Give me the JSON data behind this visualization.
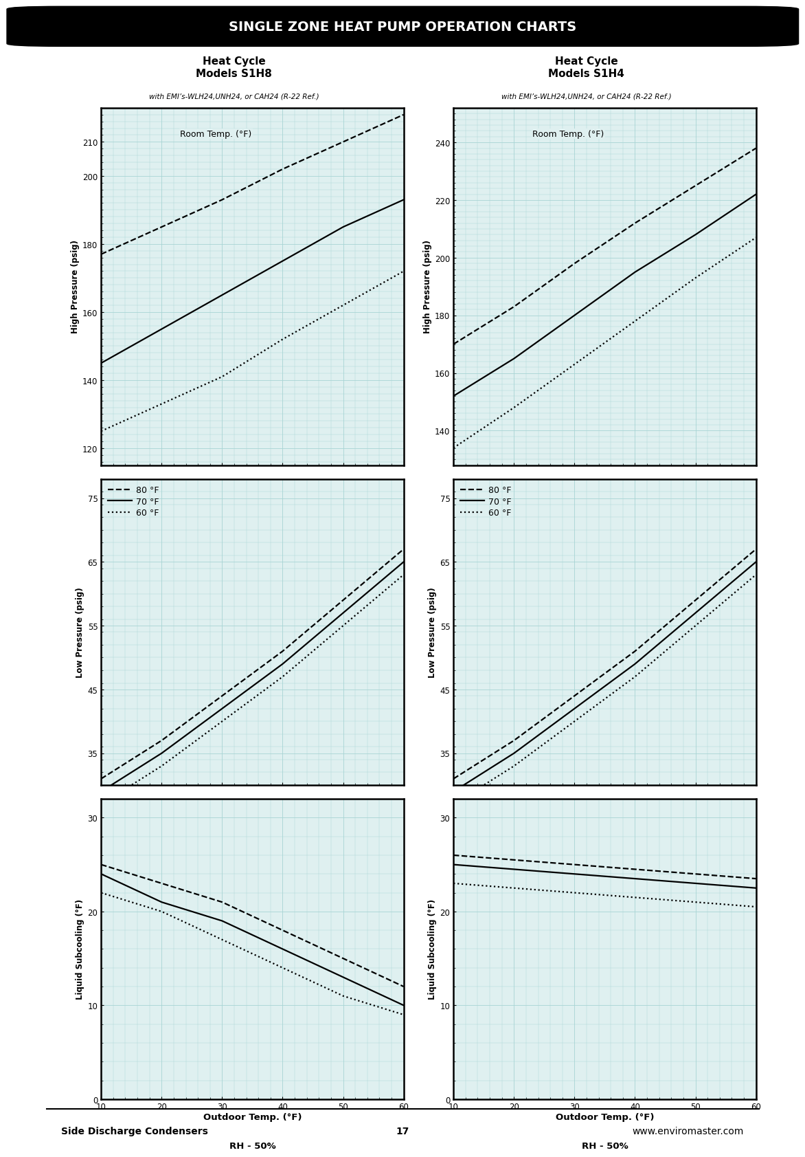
{
  "title": "SINGLE ZONE HEAT PUMP OPERATION CHARTS",
  "footer_left": "Side Discharge Condensers",
  "footer_center": "17",
  "footer_right": "www.enviromaster.com",
  "col1_title": "Heat Cycle\nModels S1H8",
  "col1_subtitle": "with EMI’s-WLH24,UNH24, or CAH24 (R-22 Ref.)",
  "col2_title": "Heat Cycle\nModels S1H4",
  "col2_subtitle": "with EMI’s-WLH24,UNH24, or CAH24 (R-22 Ref.)",
  "x_label_line1": "Outdoor Temp. (°F)",
  "x_label_line2": "RH - 50%",
  "x_ticks": [
    10,
    20,
    30,
    40,
    50,
    60
  ],
  "x_lim": [
    10,
    60
  ],
  "legend_labels": [
    "80 °F",
    "70 °F",
    "60 °F"
  ],
  "room_temp_label": "Room Temp. (°F)",
  "s1h8_high_pressure": {
    "ylabel": "High Pressure (psig)",
    "ylim": [
      115,
      220
    ],
    "yticks": [
      120,
      140,
      160,
      180,
      200,
      210
    ],
    "lines": {
      "80F": [
        177,
        185,
        193,
        202,
        210,
        218
      ],
      "70F": [
        145,
        155,
        165,
        175,
        185,
        193
      ],
      "60F": [
        125,
        133,
        141,
        152,
        162,
        172
      ]
    }
  },
  "s1h8_low_pressure": {
    "ylabel": "Low Pressure (psig)",
    "ylim": [
      30,
      78
    ],
    "yticks": [
      35,
      45,
      55,
      65,
      75
    ],
    "lines": {
      "80F": [
        31,
        37,
        44,
        51,
        59,
        67
      ],
      "70F": [
        29,
        35,
        42,
        49,
        57,
        65
      ],
      "60F": [
        27,
        33,
        40,
        47,
        55,
        63
      ]
    }
  },
  "s1h8_subcooling": {
    "ylabel": "Liquid Subcooling (°F)",
    "ylim": [
      0,
      32
    ],
    "yticks": [
      0,
      10,
      20,
      30
    ],
    "lines": {
      "80F": [
        25,
        23,
        21,
        18,
        15,
        12
      ],
      "70F": [
        24,
        21,
        19,
        16,
        13,
        10
      ],
      "60F": [
        22,
        20,
        17,
        14,
        11,
        9
      ]
    }
  },
  "s1h4_high_pressure": {
    "ylabel": "High Pressure (psig)",
    "ylim": [
      128,
      252
    ],
    "yticks": [
      140,
      160,
      180,
      200,
      220,
      240
    ],
    "lines": {
      "80F": [
        170,
        183,
        198,
        212,
        225,
        238
      ],
      "70F": [
        152,
        165,
        180,
        195,
        208,
        222
      ],
      "60F": [
        134,
        148,
        163,
        178,
        193,
        207
      ]
    }
  },
  "s1h4_low_pressure": {
    "ylabel": "Low Pressure (psig)",
    "ylim": [
      30,
      78
    ],
    "yticks": [
      35,
      45,
      55,
      65,
      75
    ],
    "lines": {
      "80F": [
        31,
        37,
        44,
        51,
        59,
        67
      ],
      "70F": [
        29,
        35,
        42,
        49,
        57,
        65
      ],
      "60F": [
        27,
        33,
        40,
        47,
        55,
        63
      ]
    }
  },
  "s1h4_subcooling": {
    "ylabel": "Liquid Subcooling (°F)",
    "ylim": [
      0,
      32
    ],
    "yticks": [
      0,
      10,
      20,
      30
    ],
    "lines": {
      "80F": [
        26,
        25.5,
        25,
        24.5,
        24,
        23.5
      ],
      "70F": [
        25,
        24.5,
        24,
        23.5,
        23,
        22.5
      ],
      "60F": [
        23,
        22.5,
        22,
        21.5,
        21,
        20.5
      ]
    }
  },
  "grid_color": "#a8d4d4",
  "line_color": "#000000",
  "line_width": 1.6,
  "bg_color": "#ffffff"
}
